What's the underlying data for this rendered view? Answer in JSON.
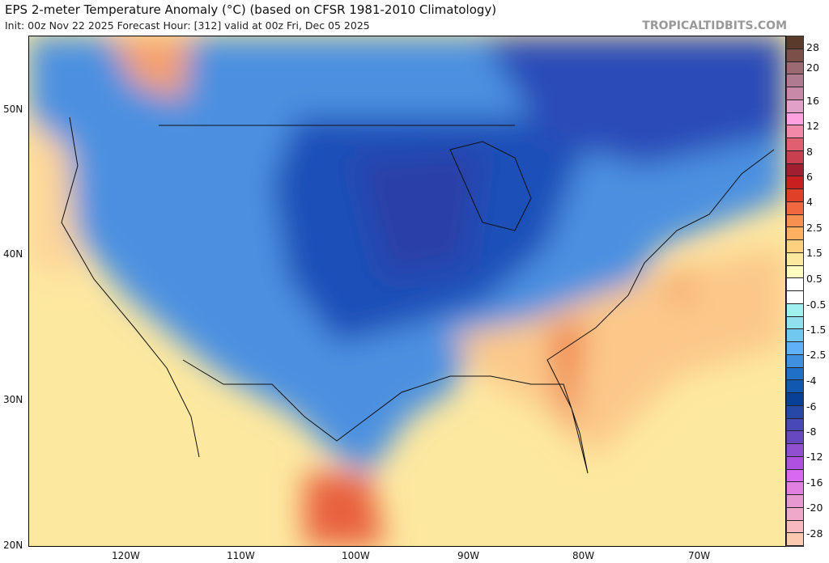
{
  "header": {
    "title": "EPS 2-meter Temperature Anomaly (°C) (based on CFSR 1981-2010 Climatology)",
    "subtitle": "Init: 00z Nov 22 2025   Forecast Hour: [312]   valid at 00z Fri, Dec 05 2025",
    "brand": "TROPICALTIDBITS.COM"
  },
  "axes": {
    "lat": [
      "50N",
      "40N",
      "30N",
      "20N"
    ],
    "lon": [
      "120W",
      "110W",
      "100W",
      "90W",
      "80W",
      "70W"
    ]
  },
  "colorbar": {
    "labels": [
      "28",
      "20",
      "16",
      "12",
      "8",
      "6",
      "4",
      "2.5",
      "1.5",
      "0.5",
      "-0.5",
      "-1.5",
      "-2.5",
      "-4",
      "-6",
      "-8",
      "-12",
      "-16",
      "-20",
      "-28"
    ],
    "colors": [
      "#5a3a2a",
      "#7a5048",
      "#9c6a72",
      "#b07a90",
      "#c888a8",
      "#e0a0c8",
      "#ffa0e0",
      "#f08aa8",
      "#e06070",
      "#c84050",
      "#a02030",
      "#c82020",
      "#e04028",
      "#f06840",
      "#f89050",
      "#fcb060",
      "#fdd080",
      "#fde8a0",
      "#fefcc0",
      "#ffffff",
      "#ffffff",
      "#a0f0f0",
      "#90e0f0",
      "#70c8f0",
      "#60b0f8",
      "#4090e0",
      "#2070c8",
      "#1058b0",
      "#084098",
      "#2848a8",
      "#4848b8",
      "#6848c0",
      "#9050d0",
      "#b050e0",
      "#d868f0",
      "#e080e0",
      "#e898d0",
      "#f0a8c8",
      "#f8b8c0",
      "#fcc8b0"
    ]
  }
}
